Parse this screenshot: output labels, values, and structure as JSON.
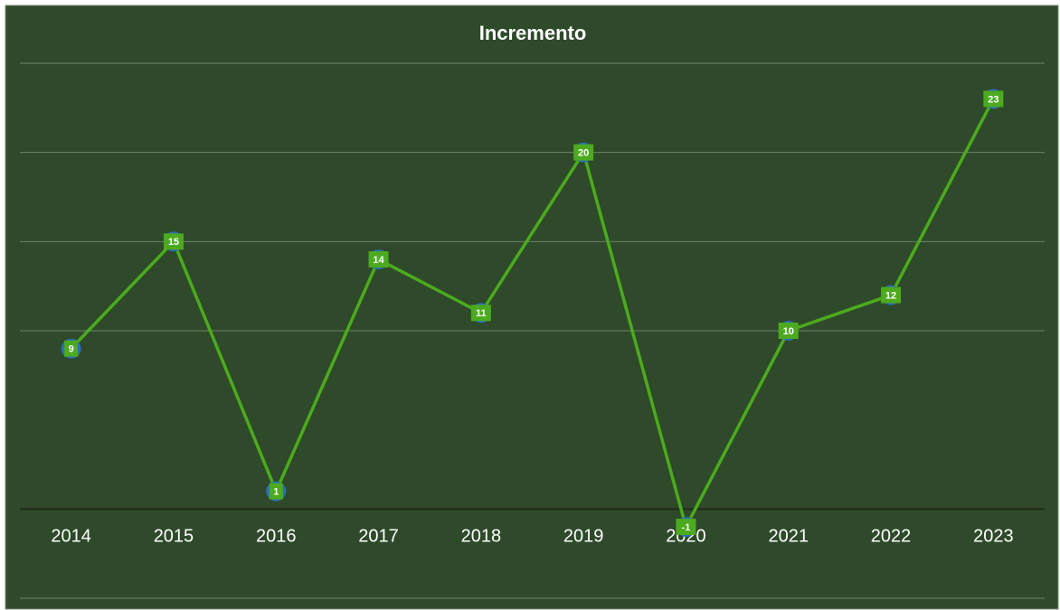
{
  "chart_data": {
    "type": "line",
    "title": "Incremento",
    "categories": [
      "2014",
      "2015",
      "2016",
      "2017",
      "2018",
      "2019",
      "2020",
      "2021",
      "2022",
      "2023"
    ],
    "series": [
      {
        "name": "Incremento",
        "color": "#4caa1e",
        "marker_color": "#2a6db8",
        "values": [
          9,
          15,
          1,
          14,
          11,
          20,
          -1,
          10,
          12,
          23
        ]
      }
    ],
    "ylim": [
      -5,
      25
    ],
    "yticks": [
      -5,
      0,
      10,
      15,
      20,
      25
    ],
    "grid": true
  }
}
